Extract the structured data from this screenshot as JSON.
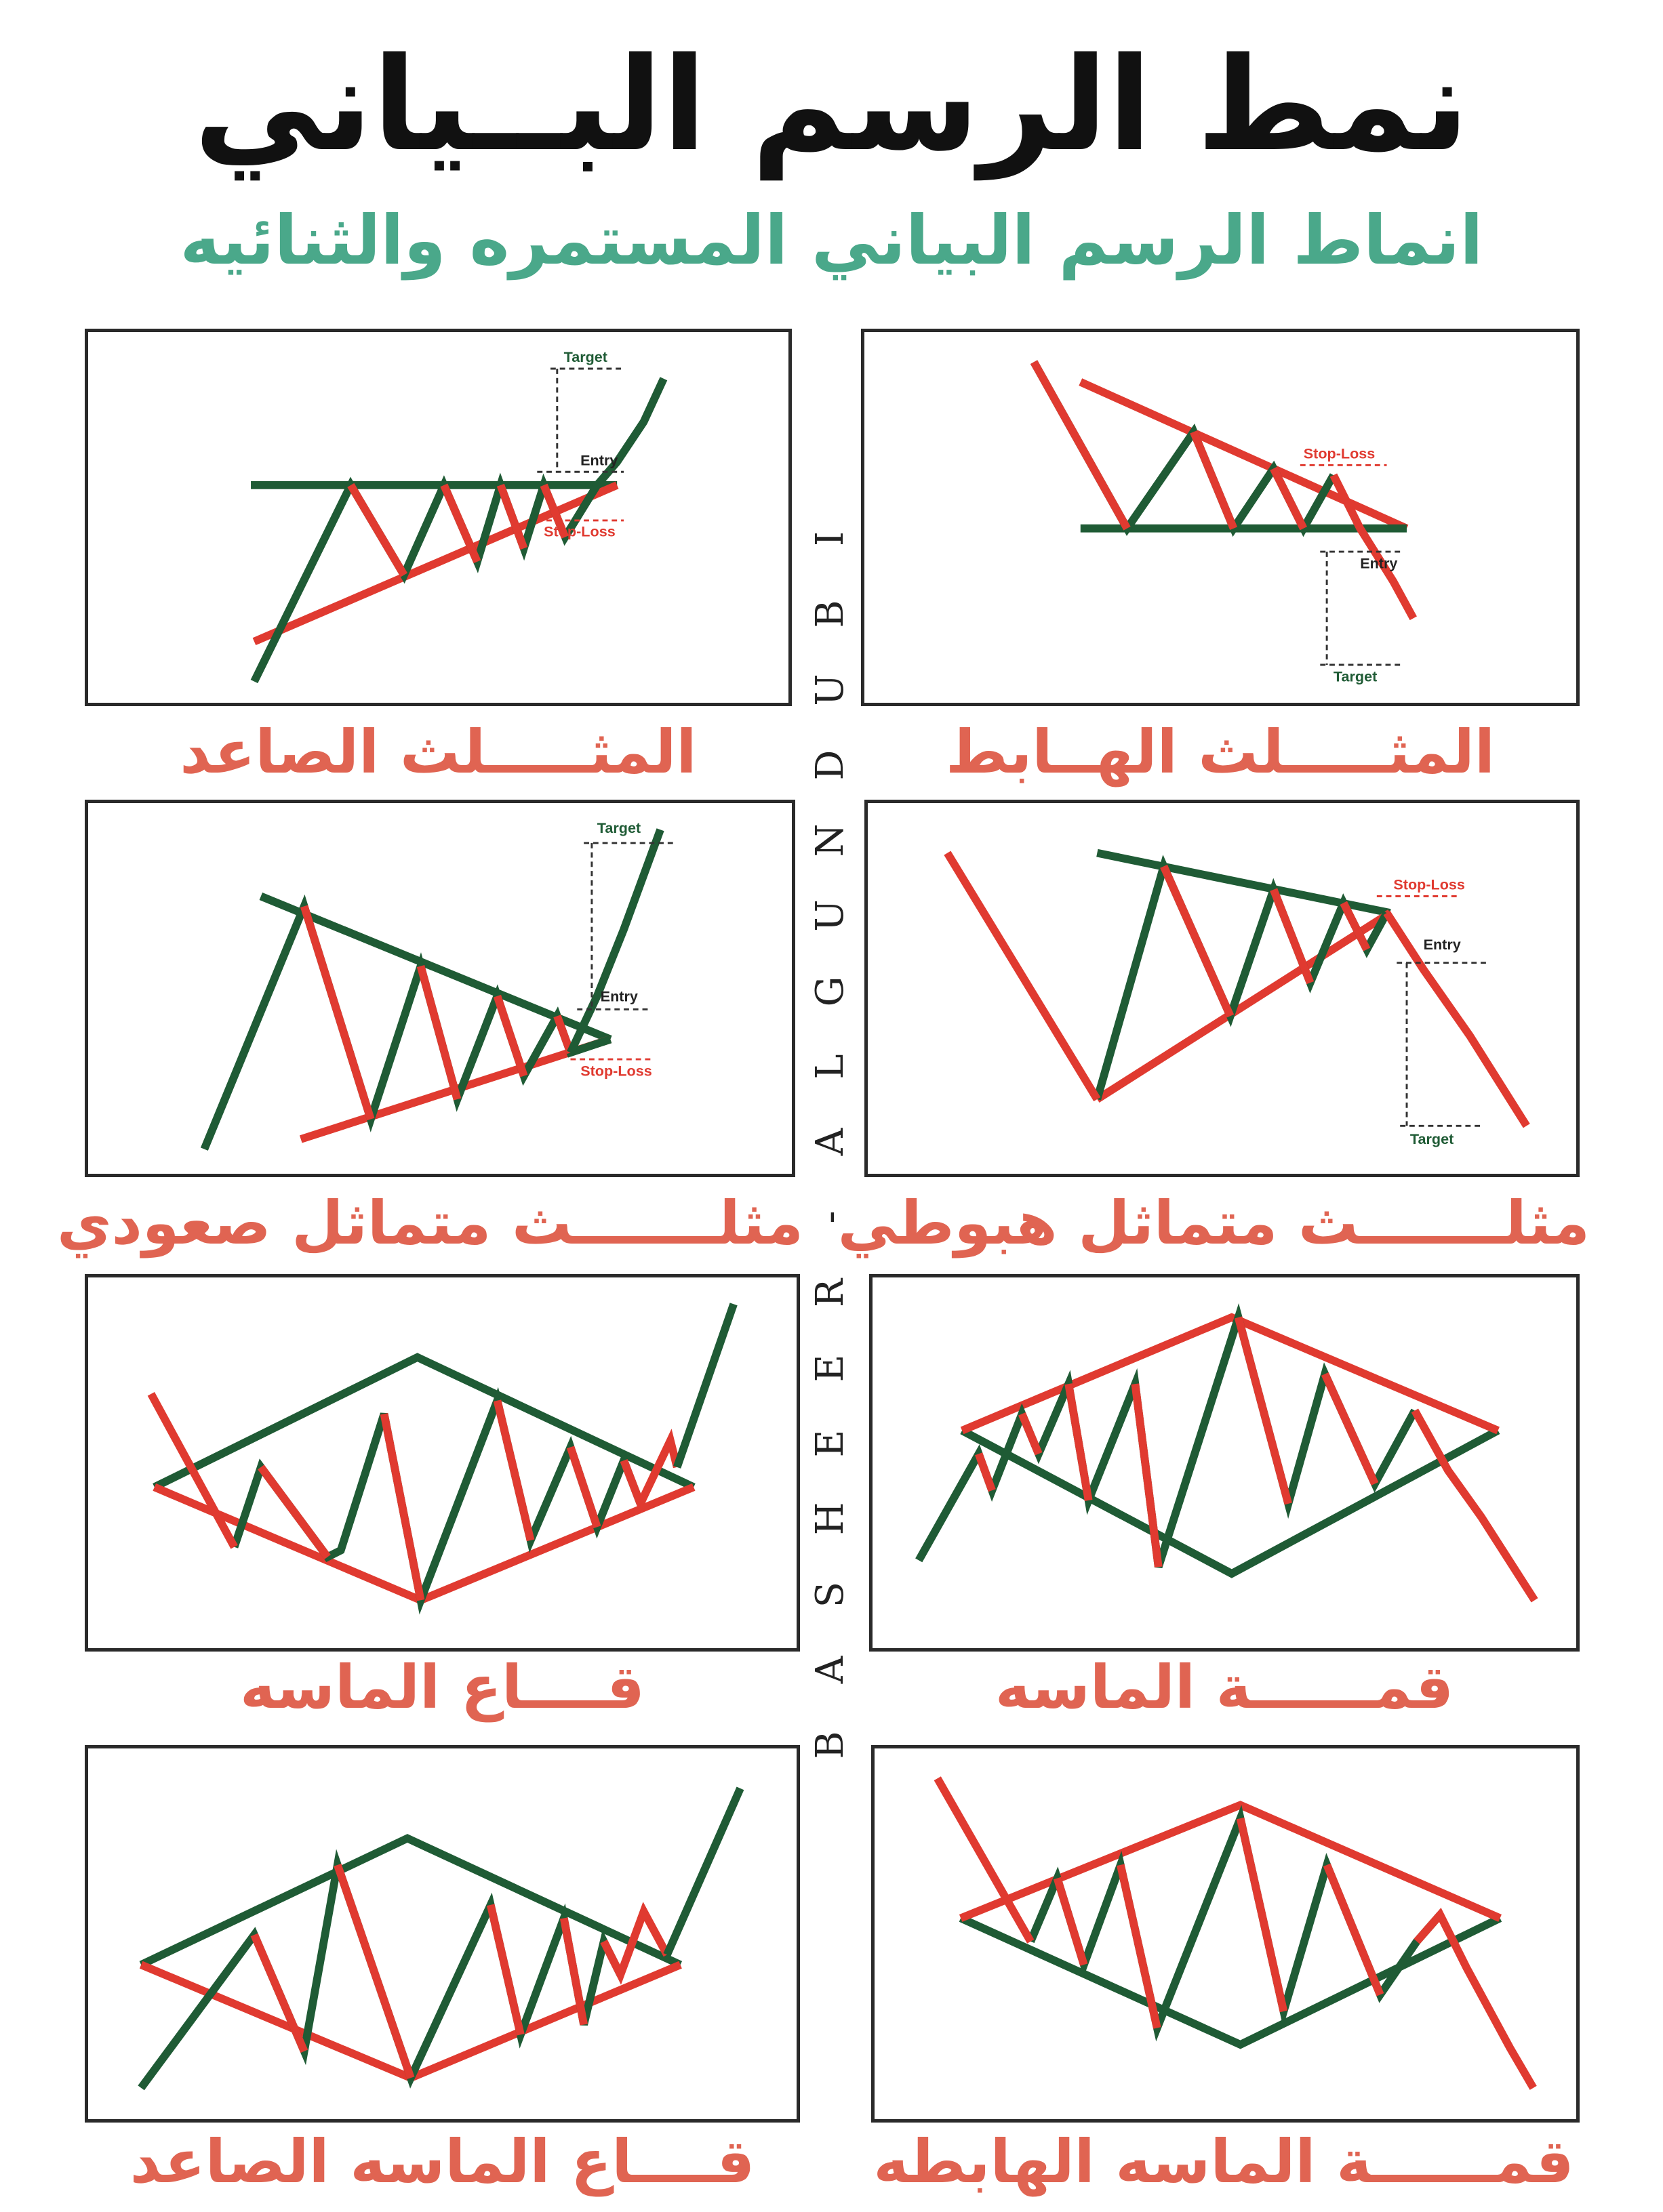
{
  "title": "نمط الرسم البــياني",
  "subtitle": "انماط الرسم البياني المستمره والثنائيه",
  "watermark": [
    "B",
    "A",
    "S",
    "H",
    "E",
    "E",
    "R",
    "-",
    "A",
    "L",
    "G",
    "U",
    "N",
    "D",
    "U",
    "B",
    "I"
  ],
  "colors": {
    "green": "#1f5b35",
    "red": "#e03a30",
    "caption": "#e06452",
    "subtitle": "#4aa88a"
  },
  "panels": [
    {
      "id": "ascending-triangle",
      "caption": "المثـــــلث الصاعد",
      "labels": {
        "target": "Target",
        "entry": "Entry",
        "stop": "Stop-Loss"
      }
    },
    {
      "id": "descending-triangle",
      "caption": "المثـــــلث الهــابط",
      "labels": {
        "target": "Target",
        "entry": "Entry",
        "stop": "Stop-Loss"
      }
    },
    {
      "id": "symmetrical-triangle-bullish",
      "caption": "مثلـــــــث متماثل صعودي",
      "labels": {
        "target": "Target",
        "entry": "Entry",
        "stop": "Stop-Loss"
      }
    },
    {
      "id": "symmetrical-triangle-bearish",
      "caption": "مثلـــــــث متماثل هبوطي",
      "labels": {
        "target": "Target",
        "entry": "Entry",
        "stop": "Stop-Loss"
      }
    },
    {
      "id": "diamond-bottom",
      "caption": "قــــاع الماسه"
    },
    {
      "id": "diamond-top",
      "caption": "قمــــــة الماسه"
    },
    {
      "id": "diamond-bottom-bullish",
      "caption": "قــــاع الماسه الصاعد"
    },
    {
      "id": "diamond-top-bearish",
      "caption": "قمــــــة الماسه الهابطه"
    }
  ]
}
